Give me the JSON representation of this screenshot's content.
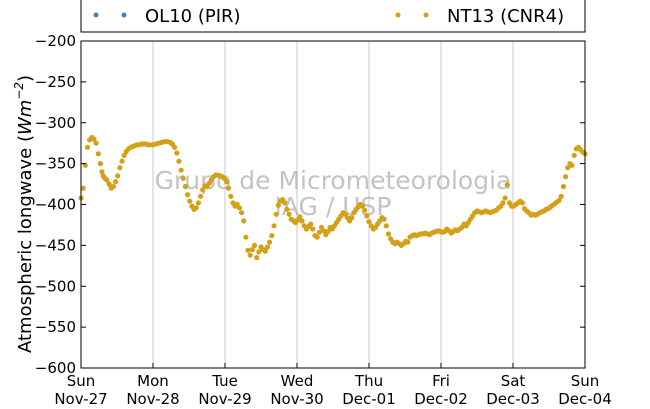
{
  "chart_data": {
    "type": "scatter",
    "title": "",
    "xlabel": "",
    "ylabel": "Atmospheric longwave",
    "ylabel_unit_base": "Wm",
    "ylabel_unit_exp": "−2",
    "ylim": [
      -600,
      -200
    ],
    "xlim_days": [
      0,
      7
    ],
    "grid": "vertical",
    "yticks": [
      -200,
      -250,
      -300,
      -350,
      -400,
      -450,
      -500,
      -550,
      -600
    ],
    "ytick_labels": [
      "−200",
      "−250",
      "−300",
      "−350",
      "−400",
      "−450",
      "−500",
      "−550",
      "−600"
    ],
    "xtick_days": [
      "Sun",
      "Mon",
      "Tue",
      "Wed",
      "Thu",
      "Fri",
      "Sat",
      "Sun"
    ],
    "xtick_dates": [
      "Nov-27",
      "Nov-28",
      "Nov-29",
      "Nov-30",
      "Dec-01",
      "Dec-02",
      "Dec-03",
      "Dec-04"
    ],
    "legend": {
      "placement": "top",
      "entries": [
        {
          "label": "OL10 (PIR)",
          "color": "#4682b4"
        },
        {
          "label": "NT13 (CNR4)",
          "color": "#d4a017"
        }
      ]
    },
    "watermark": [
      "Grupo de Micrometeorologia",
      "IAG / USP"
    ],
    "series": [
      {
        "name": "OL10 (PIR)",
        "color": "#4682b4",
        "points": []
      },
      {
        "name": "NT13 (CNR4)",
        "color": "#d4a017",
        "points": [
          [
            0.0,
            -392
          ],
          [
            0.03,
            -380
          ],
          [
            0.06,
            -352
          ],
          [
            0.09,
            -330
          ],
          [
            0.12,
            -321
          ],
          [
            0.15,
            -318
          ],
          [
            0.18,
            -320
          ],
          [
            0.21,
            -325
          ],
          [
            0.24,
            -338
          ],
          [
            0.27,
            -350
          ],
          [
            0.29,
            -360
          ],
          [
            0.31,
            -365
          ],
          [
            0.33,
            -368
          ],
          [
            0.36,
            -370
          ],
          [
            0.39,
            -375
          ],
          [
            0.42,
            -380
          ],
          [
            0.45,
            -378
          ],
          [
            0.48,
            -372
          ],
          [
            0.51,
            -365
          ],
          [
            0.54,
            -355
          ],
          [
            0.57,
            -347
          ],
          [
            0.6,
            -340
          ],
          [
            0.63,
            -335
          ],
          [
            0.66,
            -332
          ],
          [
            0.69,
            -330
          ],
          [
            0.72,
            -329
          ],
          [
            0.75,
            -328
          ],
          [
            0.78,
            -327
          ],
          [
            0.81,
            -327
          ],
          [
            0.84,
            -326
          ],
          [
            0.87,
            -326
          ],
          [
            0.9,
            -326
          ],
          [
            0.93,
            -327
          ],
          [
            0.96,
            -327
          ],
          [
            1.0,
            -327
          ],
          [
            1.04,
            -326
          ],
          [
            1.08,
            -325
          ],
          [
            1.12,
            -324
          ],
          [
            1.16,
            -323
          ],
          [
            1.2,
            -323
          ],
          [
            1.24,
            -324
          ],
          [
            1.27,
            -326
          ],
          [
            1.3,
            -330
          ],
          [
            1.33,
            -337
          ],
          [
            1.36,
            -347
          ],
          [
            1.39,
            -358
          ],
          [
            1.42,
            -368
          ],
          [
            1.45,
            -378
          ],
          [
            1.48,
            -388
          ],
          [
            1.51,
            -396
          ],
          [
            1.54,
            -402
          ],
          [
            1.57,
            -406
          ],
          [
            1.6,
            -404
          ],
          [
            1.63,
            -398
          ],
          [
            1.66,
            -390
          ],
          [
            1.69,
            -382
          ],
          [
            1.72,
            -377
          ],
          [
            1.75,
            -378
          ],
          [
            1.78,
            -374
          ],
          [
            1.81,
            -370
          ],
          [
            1.84,
            -366
          ],
          [
            1.87,
            -364
          ],
          [
            1.9,
            -364
          ],
          [
            1.93,
            -365
          ],
          [
            1.96,
            -366
          ],
          [
            1.99,
            -368
          ],
          [
            2.02,
            -372
          ],
          [
            2.05,
            -380
          ],
          [
            2.08,
            -390
          ],
          [
            2.11,
            -398
          ],
          [
            2.14,
            -402
          ],
          [
            2.17,
            -400
          ],
          [
            2.2,
            -404
          ],
          [
            2.23,
            -410
          ],
          [
            2.26,
            -420
          ],
          [
            2.29,
            -440
          ],
          [
            2.32,
            -456
          ],
          [
            2.35,
            -462
          ],
          [
            2.38,
            -455
          ],
          [
            2.41,
            -450
          ],
          [
            2.44,
            -465
          ],
          [
            2.47,
            -458
          ],
          [
            2.5,
            -452
          ],
          [
            2.53,
            -455
          ],
          [
            2.56,
            -457
          ],
          [
            2.59,
            -452
          ],
          [
            2.62,
            -446
          ],
          [
            2.65,
            -438
          ],
          [
            2.68,
            -426
          ],
          [
            2.71,
            -412
          ],
          [
            2.74,
            -401
          ],
          [
            2.77,
            -396
          ],
          [
            2.8,
            -394
          ],
          [
            2.83,
            -398
          ],
          [
            2.86,
            -406
          ],
          [
            2.89,
            -412
          ],
          [
            2.92,
            -418
          ],
          [
            2.95,
            -420
          ],
          [
            2.98,
            -422
          ],
          [
            3.01,
            -419
          ],
          [
            3.04,
            -415
          ],
          [
            3.07,
            -420
          ],
          [
            3.1,
            -426
          ],
          [
            3.13,
            -430
          ],
          [
            3.16,
            -427
          ],
          [
            3.19,
            -424
          ],
          [
            3.22,
            -430
          ],
          [
            3.25,
            -438
          ],
          [
            3.28,
            -440
          ],
          [
            3.31,
            -434
          ],
          [
            3.34,
            -428
          ],
          [
            3.37,
            -432
          ],
          [
            3.4,
            -437
          ],
          [
            3.43,
            -433
          ],
          [
            3.46,
            -428
          ],
          [
            3.49,
            -430
          ],
          [
            3.52,
            -426
          ],
          [
            3.55,
            -422
          ],
          [
            3.58,
            -418
          ],
          [
            3.61,
            -414
          ],
          [
            3.64,
            -410
          ],
          [
            3.67,
            -412
          ],
          [
            3.7,
            -416
          ],
          [
            3.73,
            -420
          ],
          [
            3.76,
            -416
          ],
          [
            3.79,
            -410
          ],
          [
            3.82,
            -406
          ],
          [
            3.85,
            -403
          ],
          [
            3.88,
            -400
          ],
          [
            3.91,
            -402
          ],
          [
            3.94,
            -407
          ],
          [
            3.97,
            -414
          ],
          [
            4.0,
            -421
          ],
          [
            4.03,
            -426
          ],
          [
            4.06,
            -430
          ],
          [
            4.09,
            -428
          ],
          [
            4.12,
            -424
          ],
          [
            4.15,
            -420
          ],
          [
            4.18,
            -416
          ],
          [
            4.21,
            -418
          ],
          [
            4.24,
            -426
          ],
          [
            4.27,
            -436
          ],
          [
            4.3,
            -442
          ],
          [
            4.33,
            -446
          ],
          [
            4.36,
            -448
          ],
          [
            4.39,
            -446
          ],
          [
            4.42,
            -448
          ],
          [
            4.45,
            -450
          ],
          [
            4.48,
            -448
          ],
          [
            4.51,
            -445
          ],
          [
            4.54,
            -446
          ],
          [
            4.57,
            -440
          ],
          [
            4.6,
            -438
          ],
          [
            4.63,
            -437
          ],
          [
            4.66,
            -438
          ],
          [
            4.69,
            -437
          ],
          [
            4.72,
            -436
          ],
          [
            4.75,
            -436
          ],
          [
            4.78,
            -435
          ],
          [
            4.81,
            -436
          ],
          [
            4.84,
            -437
          ],
          [
            4.87,
            -435
          ],
          [
            4.9,
            -434
          ],
          [
            4.93,
            -433
          ],
          [
            4.96,
            -432
          ],
          [
            4.99,
            -433
          ],
          [
            5.02,
            -434
          ],
          [
            5.05,
            -433
          ],
          [
            5.08,
            -430
          ],
          [
            5.11,
            -432
          ],
          [
            5.14,
            -435
          ],
          [
            5.17,
            -433
          ],
          [
            5.2,
            -431
          ],
          [
            5.23,
            -432
          ],
          [
            5.26,
            -430
          ],
          [
            5.29,
            -428
          ],
          [
            5.32,
            -424
          ],
          [
            5.35,
            -426
          ],
          [
            5.38,
            -422
          ],
          [
            5.41,
            -418
          ],
          [
            5.44,
            -414
          ],
          [
            5.47,
            -410
          ],
          [
            5.5,
            -408
          ],
          [
            5.53,
            -409
          ],
          [
            5.56,
            -410
          ],
          [
            5.59,
            -409
          ],
          [
            5.62,
            -408
          ],
          [
            5.65,
            -409
          ],
          [
            5.68,
            -410
          ],
          [
            5.71,
            -409
          ],
          [
            5.74,
            -408
          ],
          [
            5.77,
            -407
          ],
          [
            5.8,
            -404
          ],
          [
            5.83,
            -402
          ],
          [
            5.86,
            -398
          ],
          [
            5.89,
            -392
          ],
          [
            5.92,
            -376
          ],
          [
            5.95,
            -398
          ],
          [
            5.98,
            -402
          ],
          [
            6.01,
            -402
          ],
          [
            6.04,
            -400
          ],
          [
            6.07,
            -398
          ],
          [
            6.1,
            -396
          ],
          [
            6.13,
            -398
          ],
          [
            6.16,
            -405
          ],
          [
            6.19,
            -408
          ],
          [
            6.22,
            -410
          ],
          [
            6.25,
            -413
          ],
          [
            6.28,
            -412
          ],
          [
            6.31,
            -413
          ],
          [
            6.34,
            -412
          ],
          [
            6.37,
            -410
          ],
          [
            6.4,
            -409
          ],
          [
            6.43,
            -408
          ],
          [
            6.46,
            -406
          ],
          [
            6.49,
            -405
          ],
          [
            6.52,
            -403
          ],
          [
            6.55,
            -401
          ],
          [
            6.58,
            -399
          ],
          [
            6.61,
            -397
          ],
          [
            6.64,
            -395
          ],
          [
            6.67,
            -390
          ],
          [
            6.7,
            -378
          ],
          [
            6.73,
            -366
          ],
          [
            6.76,
            -355
          ],
          [
            6.79,
            -350
          ],
          [
            6.82,
            -352
          ],
          [
            6.85,
            -340
          ],
          [
            6.88,
            -332
          ],
          [
            6.91,
            -330
          ],
          [
            6.94,
            -333
          ],
          [
            6.97,
            -336
          ],
          [
            7.0,
            -338
          ]
        ]
      }
    ]
  }
}
